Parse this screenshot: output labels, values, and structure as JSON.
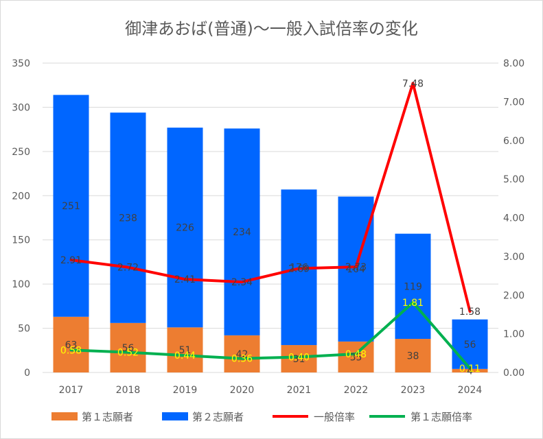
{
  "chart_data": {
    "type": "bar",
    "title": "御津あおば(普通)～一般入試倍率の変化",
    "categories": [
      "2017",
      "2018",
      "2019",
      "2020",
      "2021",
      "2022",
      "2023",
      "2024"
    ],
    "series": [
      {
        "name": "第１志願者",
        "kind": "bar",
        "axis": "left",
        "color": "#ed7d31",
        "values": [
          63,
          56,
          51,
          42,
          31,
          35,
          38,
          4
        ],
        "labels": [
          "63",
          "56",
          "51",
          "42",
          "31",
          "35",
          "38",
          "4"
        ]
      },
      {
        "name": "第２志願者",
        "kind": "bar",
        "axis": "left",
        "color": "#0066ff",
        "values": [
          251,
          238,
          226,
          234,
          176,
          164,
          119,
          56
        ],
        "labels": [
          "251",
          "238",
          "226",
          "234",
          "176",
          "164",
          "119",
          "56"
        ]
      },
      {
        "name": "一般倍率",
        "kind": "line",
        "axis": "right",
        "color": "#ff0000",
        "values": [
          2.91,
          2.72,
          2.41,
          2.34,
          2.69,
          2.73,
          7.48,
          1.58
        ],
        "labels": [
          "2.91",
          "2.72",
          "2.41",
          "2.34",
          "2.69",
          "2.73",
          "7.48",
          "1.58"
        ]
      },
      {
        "name": "第１志願倍率",
        "kind": "line",
        "axis": "right",
        "color": "#00b050",
        "values": [
          0.58,
          0.52,
          0.44,
          0.36,
          0.4,
          0.48,
          1.81,
          0.11
        ],
        "labels": [
          "0.58",
          "0.52",
          "0.44",
          "0.36",
          "0.40",
          "0.48",
          "1.81",
          "0.11"
        ]
      }
    ],
    "y_left": {
      "min": 0,
      "max": 350,
      "ticks": [
        "0",
        "50",
        "100",
        "150",
        "200",
        "250",
        "300",
        "350"
      ]
    },
    "y_right": {
      "min": 0,
      "max": 8,
      "ticks": [
        "0.00",
        "1.00",
        "2.00",
        "3.00",
        "4.00",
        "5.00",
        "6.00",
        "7.00",
        "8.00"
      ]
    },
    "grid": true,
    "legend": "bottom"
  }
}
